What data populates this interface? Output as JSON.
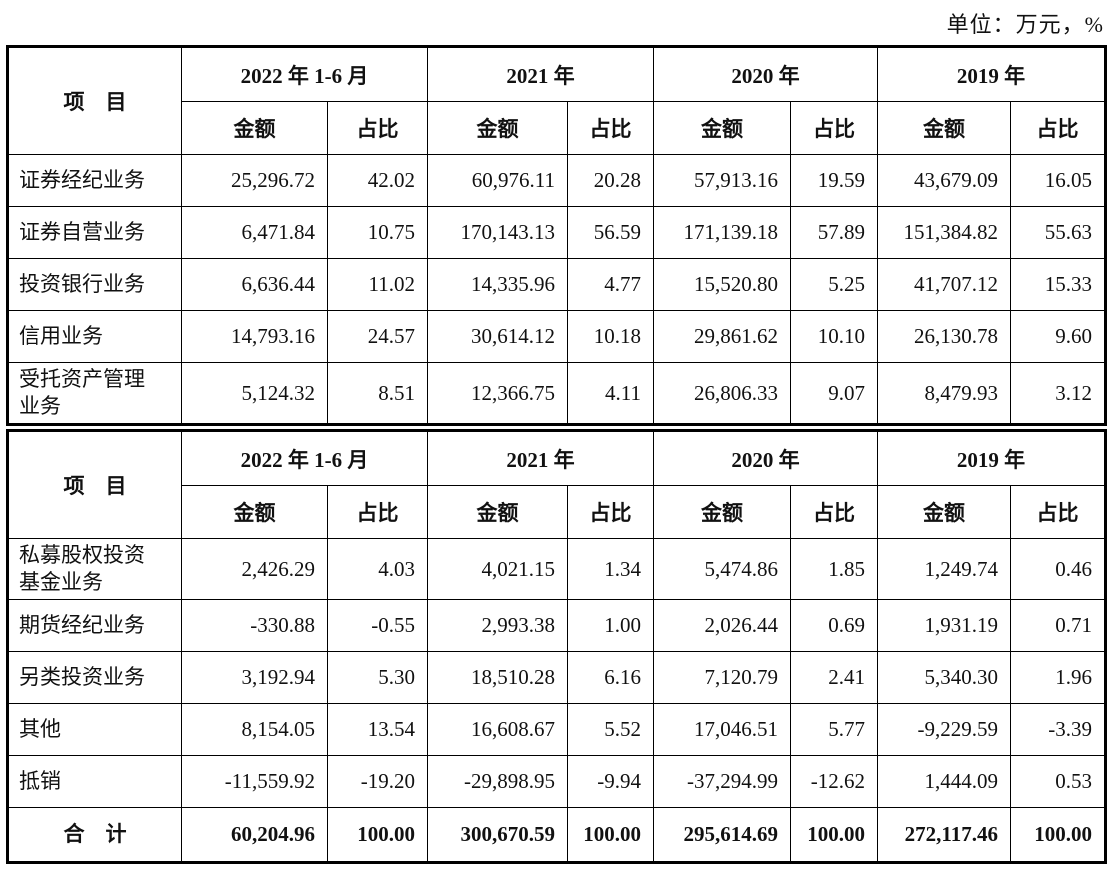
{
  "unit_label": "单位：万元，%",
  "colors": {
    "border": "#000000",
    "text": "#111111",
    "background": "#ffffff"
  },
  "tables": [
    {
      "item_header": "项　目",
      "col_groups": [
        "2022 年 1-6 月",
        "2021 年",
        "2020 年",
        "2019 年"
      ],
      "sub_headers": [
        "金额",
        "占比"
      ],
      "rows": [
        {
          "item": "证券经纪业务",
          "bold": false,
          "values": [
            "25,296.72",
            "42.02",
            "60,976.11",
            "20.28",
            "57,913.16",
            "19.59",
            "43,679.09",
            "16.05"
          ]
        },
        {
          "item": "证券自营业务",
          "bold": false,
          "values": [
            "6,471.84",
            "10.75",
            "170,143.13",
            "56.59",
            "171,139.18",
            "57.89",
            "151,384.82",
            "55.63"
          ]
        },
        {
          "item": "投资银行业务",
          "bold": false,
          "values": [
            "6,636.44",
            "11.02",
            "14,335.96",
            "4.77",
            "15,520.80",
            "5.25",
            "41,707.12",
            "15.33"
          ]
        },
        {
          "item": "信用业务",
          "bold": false,
          "values": [
            "14,793.16",
            "24.57",
            "30,614.12",
            "10.18",
            "29,861.62",
            "10.10",
            "26,130.78",
            "9.60"
          ]
        },
        {
          "item": "受托资产管理业务",
          "bold": false,
          "values": [
            "5,124.32",
            "8.51",
            "12,366.75",
            "4.11",
            "26,806.33",
            "9.07",
            "8,479.93",
            "3.12"
          ]
        }
      ]
    },
    {
      "item_header": "项　目",
      "col_groups": [
        "2022 年 1-6 月",
        "2021 年",
        "2020 年",
        "2019 年"
      ],
      "sub_headers": [
        "金额",
        "占比"
      ],
      "rows": [
        {
          "item": "私募股权投资基金业务",
          "bold": false,
          "values": [
            "2,426.29",
            "4.03",
            "4,021.15",
            "1.34",
            "5,474.86",
            "1.85",
            "1,249.74",
            "0.46"
          ]
        },
        {
          "item": "期货经纪业务",
          "bold": false,
          "values": [
            "-330.88",
            "-0.55",
            "2,993.38",
            "1.00",
            "2,026.44",
            "0.69",
            "1,931.19",
            "0.71"
          ]
        },
        {
          "item": "另类投资业务",
          "bold": false,
          "values": [
            "3,192.94",
            "5.30",
            "18,510.28",
            "6.16",
            "7,120.79",
            "2.41",
            "5,340.30",
            "1.96"
          ]
        },
        {
          "item": "其他",
          "bold": false,
          "values": [
            "8,154.05",
            "13.54",
            "16,608.67",
            "5.52",
            "17,046.51",
            "5.77",
            "-9,229.59",
            "-3.39"
          ]
        },
        {
          "item": "抵销",
          "bold": false,
          "values": [
            "-11,559.92",
            "-19.20",
            "-29,898.95",
            "-9.94",
            "-37,294.99",
            "-12.62",
            "1,444.09",
            "0.53"
          ]
        },
        {
          "item": "合　计",
          "bold": true,
          "values": [
            "60,204.96",
            "100.00",
            "300,670.59",
            "100.00",
            "295,614.69",
            "100.00",
            "272,117.46",
            "100.00"
          ]
        }
      ]
    }
  ]
}
